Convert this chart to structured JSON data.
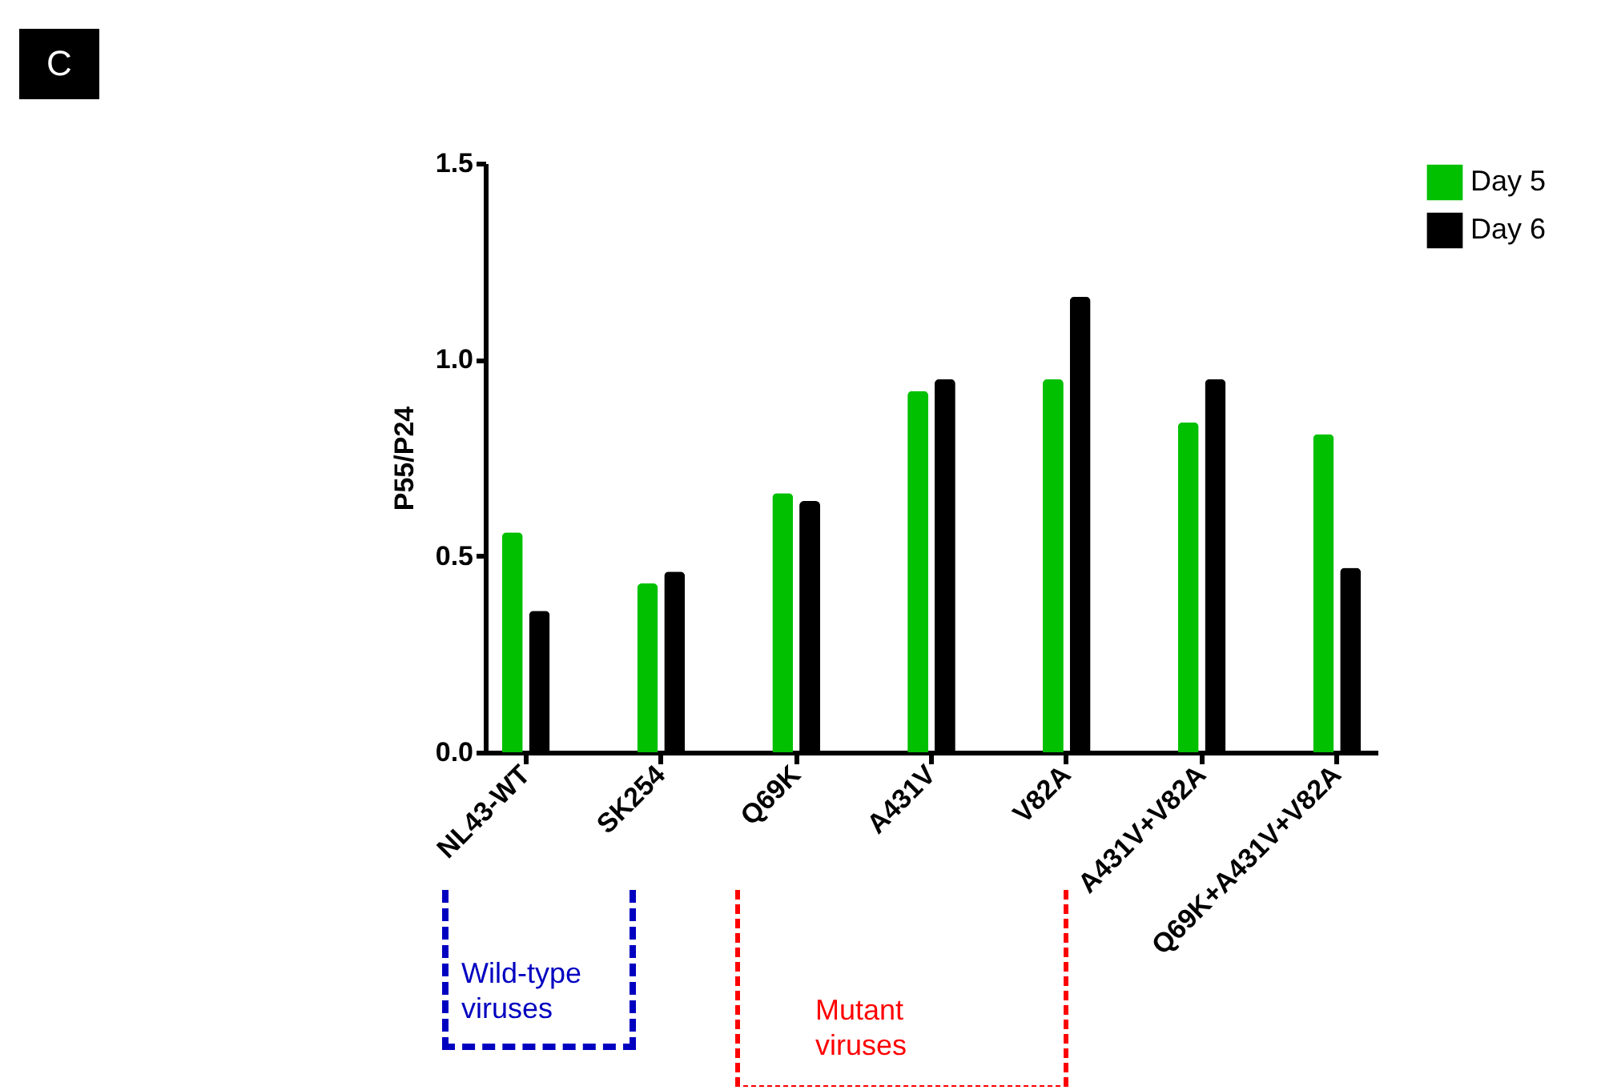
{
  "chart_data": {
    "type": "bar",
    "ylabel": "P55/P24",
    "categories": [
      "NL43-WT",
      "SK254",
      "Q69K",
      "A431V",
      "V82A",
      "A431V+V82A",
      "Q69K+A431V+V82A"
    ],
    "series": [
      {
        "name": "Day 5",
        "color": "#00c000",
        "values": [
          0.56,
          0.43,
          0.66,
          0.92,
          0.95,
          0.84,
          0.81
        ]
      },
      {
        "name": "Day 6",
        "color": "#000000",
        "values": [
          0.36,
          0.46,
          0.64,
          0.95,
          1.16,
          0.95,
          0.47
        ]
      }
    ],
    "ylim": [
      0,
      1.5
    ],
    "yticks": [
      {
        "value": 0,
        "label": "0.0"
      },
      {
        "value": 0.5,
        "label": "0.5"
      },
      {
        "value": 1,
        "label": "1.0"
      },
      {
        "value": 1.5,
        "label": "1.5"
      }
    ],
    "grid": false,
    "legend": "top right",
    "annotations": [
      "C",
      "Wild-type viruses",
      "Mutant viruses"
    ]
  }
}
